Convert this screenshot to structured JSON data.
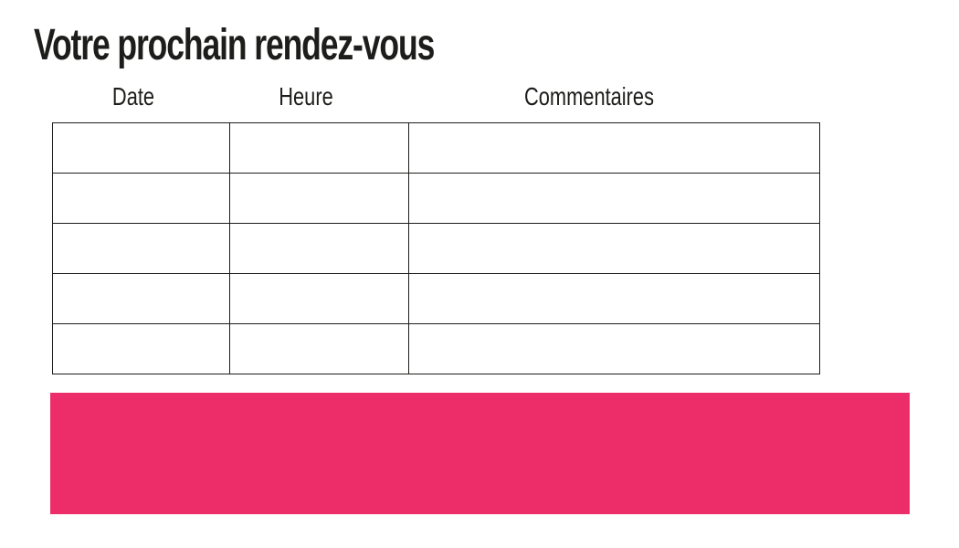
{
  "document": {
    "title": "Votre prochain rendez-vous"
  },
  "appointment_table": {
    "columns": [
      "Date",
      "Heure",
      "Commentaires"
    ],
    "rows": [
      [
        "",
        "",
        ""
      ],
      [
        "",
        "",
        ""
      ],
      [
        "",
        "",
        ""
      ],
      [
        "",
        "",
        ""
      ],
      [
        "",
        "",
        ""
      ]
    ]
  },
  "banner": {
    "text": "",
    "color": "#ED2D6A"
  },
  "colors": {
    "text": "#1d1d1b",
    "border": "#1d1d1b",
    "background": "#ffffff",
    "accent_pink": "#ED2D6A"
  }
}
